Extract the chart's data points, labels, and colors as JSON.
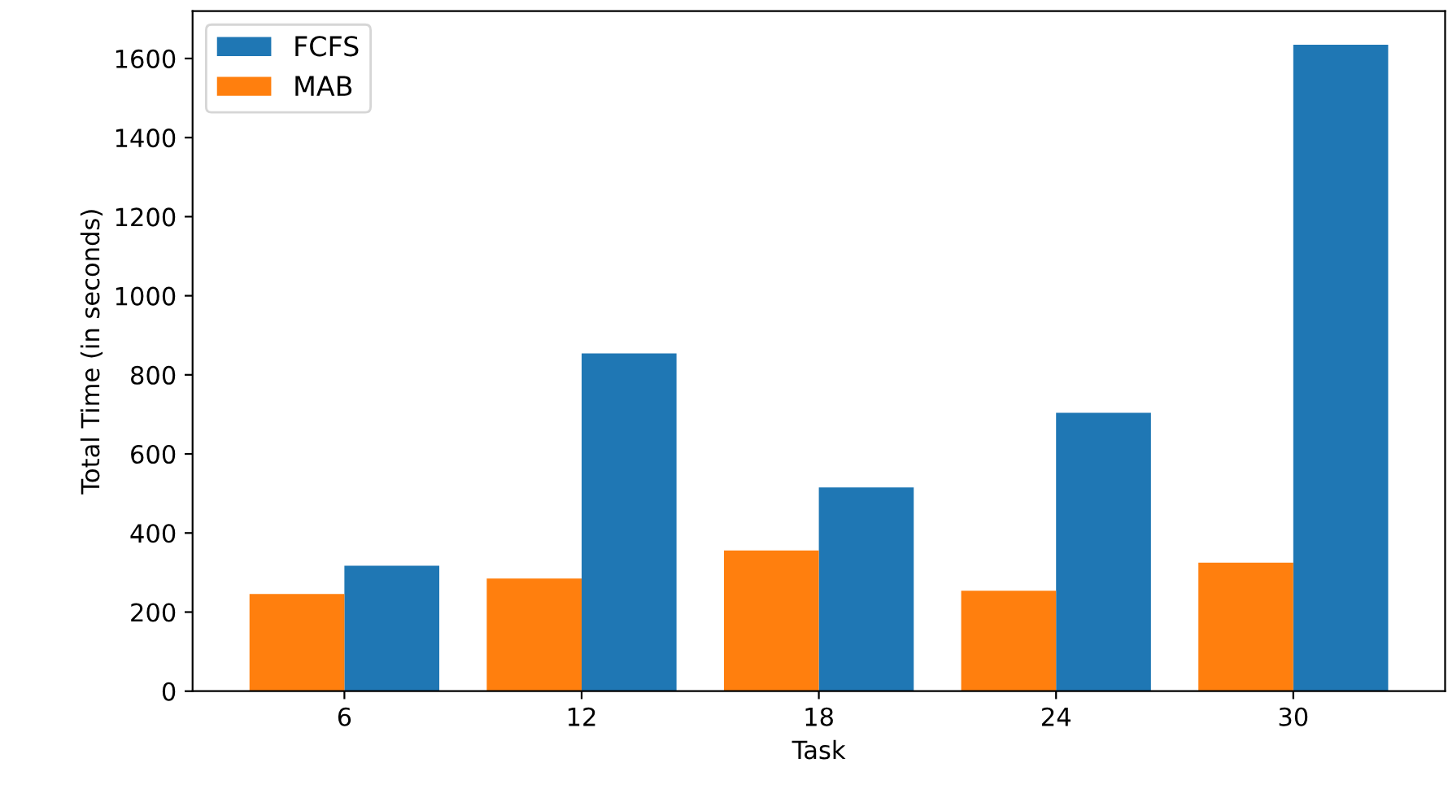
{
  "chart_data": {
    "type": "bar",
    "xlabel": "Task",
    "ylabel": "Total Time (in seconds)",
    "categories": [
      "6",
      "12",
      "18",
      "24",
      "30"
    ],
    "series": [
      {
        "name": "FCFS",
        "color": "#1f77b4",
        "values": [
          317,
          854,
          515,
          704,
          1635
        ]
      },
      {
        "name": "MAB",
        "color": "#ff7f0e",
        "values": [
          246,
          285,
          356,
          254,
          325
        ]
      }
    ],
    "ylim": [
      0,
      1720
    ],
    "yticks": [
      0,
      200,
      400,
      600,
      800,
      1000,
      1200,
      1400,
      1600
    ],
    "grid": false,
    "legend": "top left"
  }
}
